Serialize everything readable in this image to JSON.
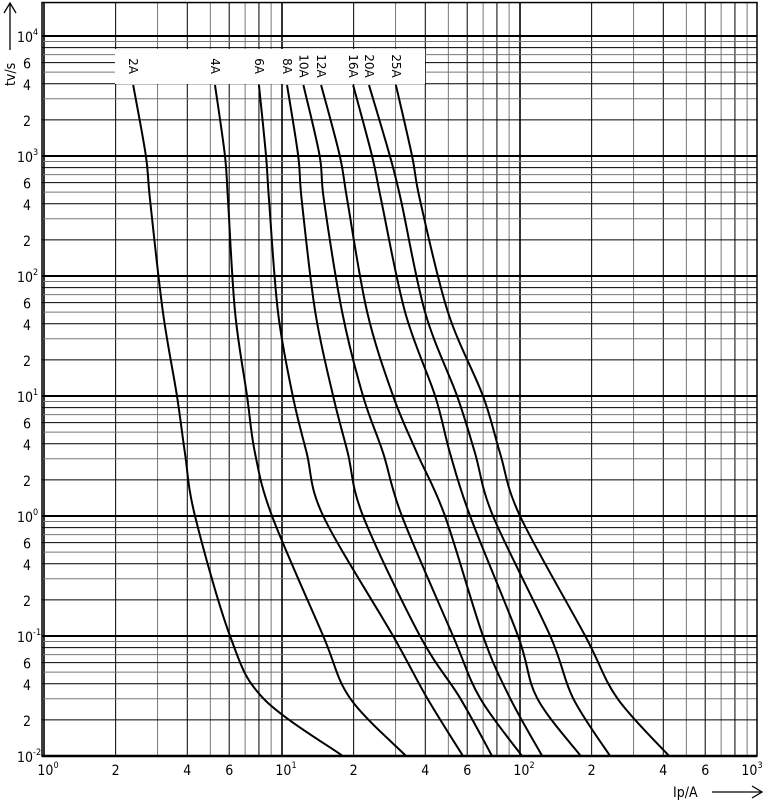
{
  "chart_data": {
    "type": "line",
    "title": "",
    "xlabel": "Ip/A",
    "ylabel": "tv/s",
    "x_scale": "log",
    "y_scale": "log",
    "xlim": [
      1,
      1000
    ],
    "ylim": [
      0.01,
      19000
    ],
    "grid": true,
    "legend": "curve labels at top of each curve",
    "x_ticks": [
      {
        "value": 1,
        "base": "10",
        "exp": "0"
      },
      {
        "value": 2,
        "base": "2",
        "exp": ""
      },
      {
        "value": 4,
        "base": "4",
        "exp": ""
      },
      {
        "value": 6,
        "base": "6",
        "exp": ""
      },
      {
        "value": 10,
        "base": "10",
        "exp": "1"
      },
      {
        "value": 20,
        "base": "2",
        "exp": ""
      },
      {
        "value": 40,
        "base": "4",
        "exp": ""
      },
      {
        "value": 60,
        "base": "6",
        "exp": ""
      },
      {
        "value": 100,
        "base": "10",
        "exp": "2"
      },
      {
        "value": 200,
        "base": "2",
        "exp": ""
      },
      {
        "value": 400,
        "base": "4",
        "exp": ""
      },
      {
        "value": 600,
        "base": "6",
        "exp": ""
      },
      {
        "value": 1000,
        "base": "10",
        "exp": "3"
      }
    ],
    "y_ticks": [
      {
        "value": 0.01,
        "base": "10",
        "exp": "-2"
      },
      {
        "value": 0.02,
        "base": "2",
        "exp": ""
      },
      {
        "value": 0.04,
        "base": "4",
        "exp": ""
      },
      {
        "value": 0.06,
        "base": "6",
        "exp": ""
      },
      {
        "value": 0.1,
        "base": "10",
        "exp": "-1"
      },
      {
        "value": 0.2,
        "base": "2",
        "exp": ""
      },
      {
        "value": 0.4,
        "base": "4",
        "exp": ""
      },
      {
        "value": 0.6,
        "base": "6",
        "exp": ""
      },
      {
        "value": 1,
        "base": "10",
        "exp": "0"
      },
      {
        "value": 2,
        "base": "2",
        "exp": ""
      },
      {
        "value": 4,
        "base": "4",
        "exp": ""
      },
      {
        "value": 6,
        "base": "6",
        "exp": ""
      },
      {
        "value": 10,
        "base": "10",
        "exp": "1"
      },
      {
        "value": 20,
        "base": "2",
        "exp": ""
      },
      {
        "value": 40,
        "base": "4",
        "exp": ""
      },
      {
        "value": 60,
        "base": "6",
        "exp": ""
      },
      {
        "value": 100,
        "base": "10",
        "exp": "2"
      },
      {
        "value": 200,
        "base": "2",
        "exp": ""
      },
      {
        "value": 400,
        "base": "4",
        "exp": ""
      },
      {
        "value": 600,
        "base": "6",
        "exp": ""
      },
      {
        "value": 1000,
        "base": "10",
        "exp": "3"
      },
      {
        "value": 2000,
        "base": "2",
        "exp": ""
      },
      {
        "value": 4000,
        "base": "4",
        "exp": ""
      },
      {
        "value": 6000,
        "base": "6",
        "exp": ""
      },
      {
        "value": 10000,
        "base": "10",
        "exp": "4"
      }
    ],
    "series": [
      {
        "name": "2A",
        "points": [
          [
            2.37,
            3900
          ],
          [
            2.68,
            1000
          ],
          [
            2.79,
            430
          ],
          [
            3.16,
            50
          ],
          [
            3.62,
            10
          ],
          [
            3.91,
            3.35
          ],
          [
            4.31,
            1
          ],
          [
            6.05,
            0.1
          ],
          [
            8.32,
            0.0304
          ],
          [
            18.0,
            0.01
          ]
        ]
      },
      {
        "name": "4A",
        "points": [
          [
            5.23,
            3900
          ],
          [
            5.76,
            1000
          ],
          [
            5.93,
            430
          ],
          [
            6.35,
            50
          ],
          [
            7.13,
            10
          ],
          [
            7.7,
            3.35
          ],
          [
            9.08,
            1
          ],
          [
            14.9,
            0.1
          ],
          [
            19.3,
            0.0304
          ],
          [
            33.2,
            0.01
          ]
        ]
      },
      {
        "name": "6A",
        "points": [
          [
            8.0,
            3900
          ],
          [
            8.57,
            1000
          ],
          [
            8.82,
            430
          ],
          [
            9.62,
            50
          ],
          [
            11.1,
            10
          ],
          [
            12.7,
            3.35
          ],
          [
            14.9,
            1
          ],
          [
            29.3,
            0.1
          ],
          [
            40.7,
            0.0304
          ],
          [
            57.6,
            0.01
          ]
        ]
      },
      {
        "name": "8A",
        "points": [
          [
            10.5,
            3900
          ],
          [
            11.7,
            1000
          ],
          [
            12.1,
            430
          ],
          [
            13.8,
            50
          ],
          [
            16.4,
            10
          ],
          [
            18.9,
            3.35
          ],
          [
            21.9,
            1
          ],
          [
            38.0,
            0.1
          ],
          [
            56.0,
            0.0304
          ],
          [
            76.3,
            0.01
          ]
        ]
      },
      {
        "name": "10A",
        "points": [
          [
            12.3,
            3900
          ],
          [
            14.4,
            1000
          ],
          [
            15.0,
            430
          ],
          [
            17.9,
            50
          ],
          [
            21.9,
            10
          ],
          [
            26.6,
            3.35
          ],
          [
            31.9,
            1
          ],
          [
            52.3,
            0.1
          ],
          [
            67.9,
            0.0304
          ],
          [
            102,
            0.01
          ]
        ]
      },
      {
        "name": "12A",
        "points": [
          [
            14.6,
            3900
          ],
          [
            17.5,
            1000
          ],
          [
            18.8,
            430
          ],
          [
            22.8,
            50
          ],
          [
            29.3,
            10
          ],
          [
            36.9,
            3.35
          ],
          [
            48.4,
            1
          ],
          [
            69.9,
            0.1
          ],
          [
            90.8,
            0.0304
          ],
          [
            124,
            0.01
          ]
        ]
      },
      {
        "name": "16A",
        "points": [
          [
            19.9,
            3900
          ],
          [
            23.9,
            1000
          ],
          [
            26.1,
            430
          ],
          [
            32.9,
            50
          ],
          [
            44.0,
            10
          ],
          [
            50.8,
            3.35
          ],
          [
            61.7,
            1
          ],
          [
            98.1,
            0.1
          ],
          [
            118,
            0.0304
          ],
          [
            180,
            0.01
          ]
        ]
      },
      {
        "name": "20A",
        "points": [
          [
            23.2,
            3900
          ],
          [
            28.4,
            1000
          ],
          [
            31.6,
            430
          ],
          [
            39.9,
            50
          ],
          [
            54.4,
            10
          ],
          [
            64.7,
            3.35
          ],
          [
            77.0,
            1
          ],
          [
            134,
            0.1
          ],
          [
            167,
            0.0304
          ],
          [
            239,
            0.01
          ]
        ]
      },
      {
        "name": "25A",
        "points": [
          [
            30.1,
            3900
          ],
          [
            35.2,
            1000
          ],
          [
            38.0,
            430
          ],
          [
            49.8,
            50
          ],
          [
            69.9,
            10
          ],
          [
            82.4,
            3.35
          ],
          [
            100,
            1
          ],
          [
            188,
            0.1
          ],
          [
            256,
            0.0304
          ],
          [
            423,
            0.01
          ]
        ]
      }
    ]
  }
}
